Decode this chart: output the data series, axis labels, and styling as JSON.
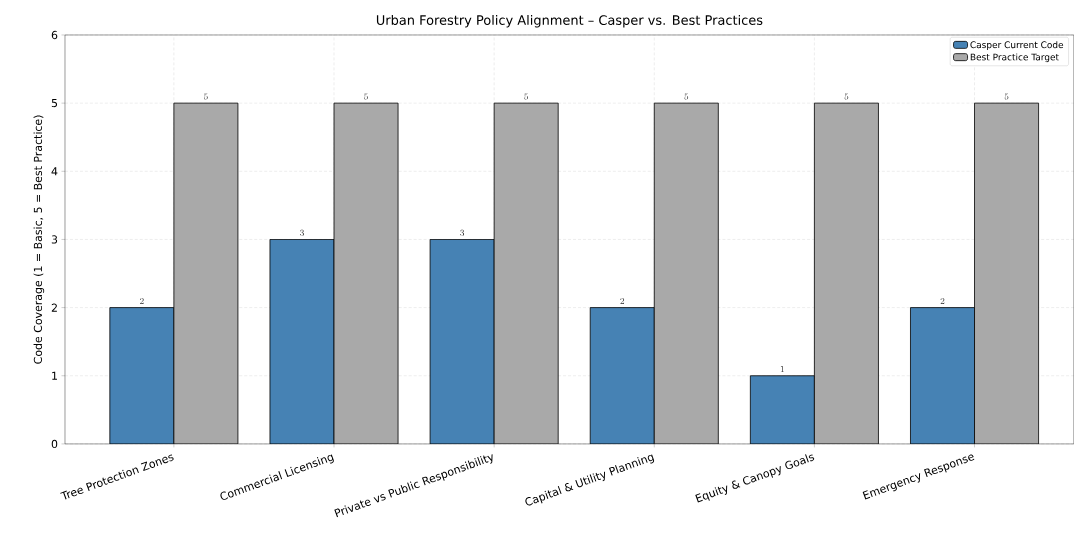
{
  "chart_data": {
    "type": "bar",
    "title": "Urban Forestry Policy Alignment – Casper vs. Best Practices",
    "ylabel": "Code Coverage (1 = Basic, 5 = Best Practice)",
    "categories": [
      "Tree Protection Zones",
      "Commercial Licensing",
      "Private vs Public Responsibility",
      "Capital & Utility Planning",
      "Equity & Canopy Goals",
      "Emergency Response"
    ],
    "series": [
      {
        "name": "Casper Current Code",
        "color": "#4682b4",
        "values": [
          2,
          3,
          3,
          2,
          1,
          2
        ]
      },
      {
        "name": "Best Practice Target",
        "color": "#a9a9a9",
        "values": [
          5,
          5,
          5,
          5,
          5,
          5
        ]
      }
    ],
    "ylim": [
      0,
      6
    ],
    "yticks": [
      0,
      1,
      2,
      3,
      4,
      5,
      6
    ],
    "grid": true,
    "legend": "top right",
    "data_labels": true
  }
}
